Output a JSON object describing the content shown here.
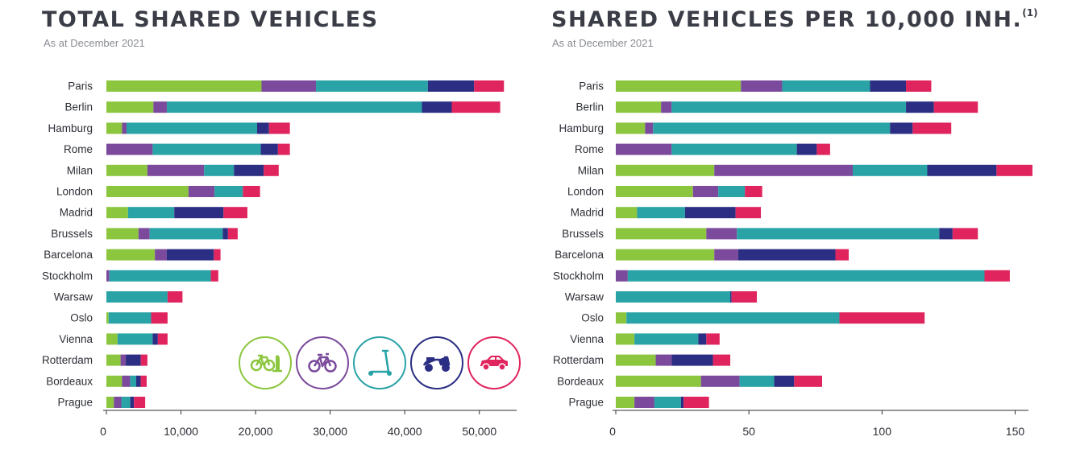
{
  "colors": {
    "bike": "#8cc63f",
    "ebike": "#7b4a9c",
    "scooter": "#29a3a6",
    "moped": "#2b2e83",
    "car": "#e0245e"
  },
  "legend": {
    "icons": [
      "bicycle-station-icon",
      "bicycle-icon",
      "kick-scooter-icon",
      "moped-icon",
      "car-icon"
    ]
  },
  "chart_data": [
    {
      "type": "bar",
      "orientation": "horizontal",
      "stacked": true,
      "title": "TOTAL SHARED VEHICLES",
      "subtitle": "As at December 2021",
      "categories": [
        "Paris",
        "Berlin",
        "Hamburg",
        "Rome",
        "Milan",
        "London",
        "Madrid",
        "Brussels",
        "Barcelona",
        "Stockholm",
        "Warsaw",
        "Oslo",
        "Vienna",
        "Rotterdam",
        "Bordeaux",
        "Prague"
      ],
      "series": [
        {
          "color": "#8cc63f",
          "values": [
            20800,
            6300,
            2100,
            0,
            5500,
            11000,
            2900,
            4300,
            6500,
            0,
            0,
            300,
            1500,
            1900,
            2100,
            1000
          ]
        },
        {
          "color": "#7b4a9c",
          "values": [
            7300,
            1800,
            600,
            6200,
            7600,
            3500,
            0,
            1500,
            1600,
            400,
            0,
            0,
            0,
            700,
            1100,
            1000
          ]
        },
        {
          "color": "#29a3a6",
          "values": [
            15000,
            34200,
            17500,
            14500,
            4000,
            3800,
            6200,
            9800,
            0,
            13600,
            8200,
            5700,
            4700,
            0,
            800,
            1200
          ]
        },
        {
          "color": "#2b2e83",
          "values": [
            6200,
            4000,
            1600,
            2300,
            4000,
            0,
            6600,
            700,
            6300,
            0,
            0,
            0,
            700,
            2000,
            600,
            500
          ]
        },
        {
          "color": "#e0245e",
          "values": [
            4000,
            6500,
            2800,
            1600,
            2000,
            2300,
            3200,
            1300,
            900,
            1000,
            2000,
            2200,
            1300,
            900,
            800,
            1500
          ]
        }
      ],
      "xlim": [
        0,
        55000
      ],
      "xticks": [
        "0",
        "10,000",
        "20,000",
        "30,000",
        "40,000",
        "50,000"
      ]
    },
    {
      "type": "bar",
      "orientation": "horizontal",
      "stacked": true,
      "title": "SHARED VEHICLES PER 10,000 INH.",
      "title_superscript": "(1)",
      "subtitle": "As at December 2021",
      "categories": [
        "Paris",
        "Berlin",
        "Hamburg",
        "Rome",
        "Milan",
        "London",
        "Madrid",
        "Brussels",
        "Barcelona",
        "Stockholm",
        "Warsaw",
        "Oslo",
        "Vienna",
        "Rotterdam",
        "Bordeaux",
        "Prague"
      ],
      "series": [
        {
          "color": "#8cc63f",
          "values": [
            47,
            17,
            11,
            0,
            37,
            29,
            8,
            34,
            37,
            0,
            0,
            4,
            7,
            15,
            32,
            7
          ]
        },
        {
          "color": "#7b4a9c",
          "values": [
            15.5,
            4,
            3,
            21,
            52,
            9.5,
            0,
            11.5,
            9,
            4.5,
            0,
            0,
            0,
            6,
            14.5,
            7.5
          ]
        },
        {
          "color": "#29a3a6",
          "values": [
            33,
            88,
            89,
            47,
            28,
            10,
            18,
            76,
            0,
            134,
            43,
            80,
            24,
            0,
            13,
            10
          ]
        },
        {
          "color": "#2b2e83",
          "values": [
            13.5,
            10.5,
            8.5,
            7.5,
            26,
            0,
            19,
            5,
            36.5,
            0,
            0.5,
            0,
            3,
            15.5,
            7.5,
            1
          ]
        },
        {
          "color": "#e0245e",
          "values": [
            9.5,
            16.5,
            14.5,
            5,
            13.5,
            6.5,
            9.5,
            9.5,
            5,
            9.5,
            9.5,
            32,
            5,
            6.5,
            10.5,
            9.5
          ]
        }
      ],
      "xlim": [
        0,
        155
      ],
      "xticks": [
        "0",
        "50",
        "100",
        "150"
      ]
    }
  ]
}
